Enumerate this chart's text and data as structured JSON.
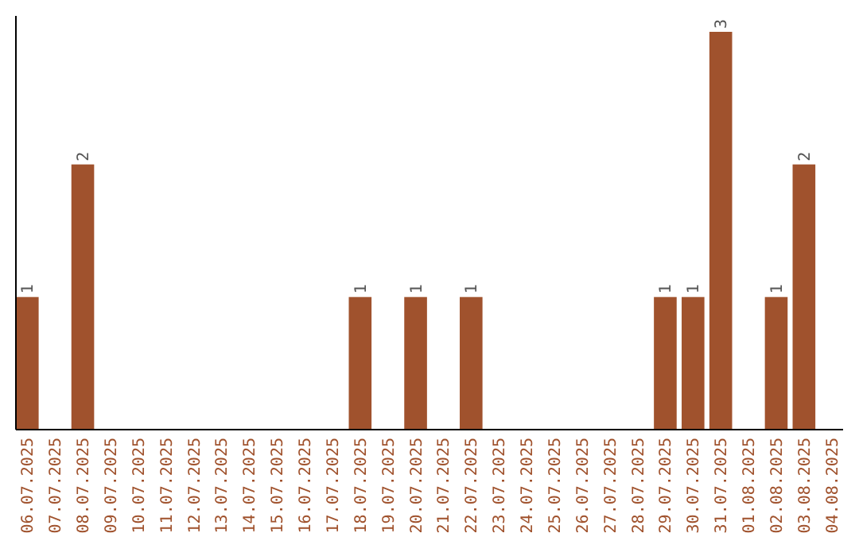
{
  "chart_data": {
    "type": "bar",
    "categories": [
      "06.07.2025",
      "07.07.2025",
      "08.07.2025",
      "09.07.2025",
      "10.07.2025",
      "11.07.2025",
      "12.07.2025",
      "13.07.2025",
      "14.07.2025",
      "15.07.2025",
      "16.07.2025",
      "17.07.2025",
      "18.07.2025",
      "19.07.2025",
      "20.07.2025",
      "21.07.2025",
      "22.07.2025",
      "23.07.2025",
      "24.07.2025",
      "25.07.2025",
      "26.07.2025",
      "27.07.2025",
      "28.07.2025",
      "29.07.2025",
      "30.07.2025",
      "31.07.2025",
      "01.08.2025",
      "02.08.2025",
      "03.08.2025",
      "04.08.2025"
    ],
    "values": [
      1,
      0,
      2,
      0,
      0,
      0,
      0,
      0,
      0,
      0,
      0,
      0,
      1,
      0,
      1,
      0,
      1,
      0,
      0,
      0,
      0,
      0,
      0,
      1,
      1,
      3,
      0,
      1,
      2,
      0
    ],
    "value_labels": [
      "1",
      null,
      "2",
      null,
      null,
      null,
      null,
      null,
      null,
      null,
      null,
      null,
      "1",
      null,
      "1",
      null,
      "1",
      null,
      null,
      null,
      null,
      null,
      null,
      "1",
      "1",
      "3",
      null,
      "1",
      "2",
      null
    ],
    "color": "#a0522d",
    "tick_labels": "x"
  }
}
